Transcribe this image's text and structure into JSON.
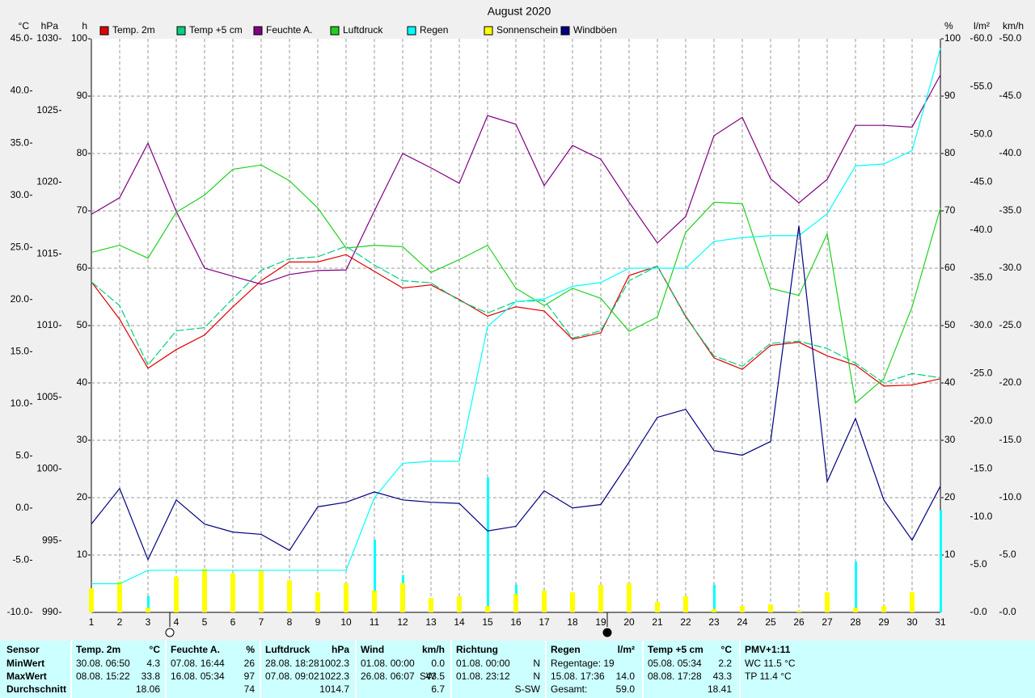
{
  "chart_data": {
    "type": "line",
    "title": "August 2020",
    "x": [
      1,
      2,
      3,
      4,
      5,
      6,
      7,
      8,
      9,
      10,
      11,
      12,
      13,
      14,
      15,
      16,
      17,
      18,
      19,
      20,
      21,
      22,
      23,
      24,
      25,
      26,
      27,
      28,
      29,
      30,
      31
    ],
    "xlim": [
      1,
      31
    ],
    "grid": "sun",
    "axes": {
      "temp": {
        "label": "°C",
        "side": "left",
        "color": "#ff0000",
        "lim": [
          -10,
          45
        ],
        "ticks": [
          {
            "value": -10,
            "label": "-10.0"
          },
          {
            "value": -5,
            "label": "-5.0"
          },
          {
            "value": 0,
            "label": "0.0"
          },
          {
            "value": 5,
            "label": "5.0"
          },
          {
            "value": 10,
            "label": "10.0"
          },
          {
            "value": 15,
            "label": "15.0"
          },
          {
            "value": 20,
            "label": "20.0"
          },
          {
            "value": 25,
            "label": "25.0"
          },
          {
            "value": 30,
            "label": "30.0"
          },
          {
            "value": 35,
            "label": "35.0"
          },
          {
            "value": 40,
            "label": "40.0"
          },
          {
            "value": 45,
            "label": "45.0"
          }
        ]
      },
      "pressure": {
        "label": "hPa",
        "side": "left",
        "color": "#00b000",
        "lim": [
          990,
          1030
        ],
        "ticks": [
          990,
          995,
          1000,
          1005,
          1010,
          1015,
          1020,
          1025,
          1030
        ]
      },
      "sun": {
        "label": "h",
        "side": "left",
        "color": "#e0e000",
        "lim": [
          0,
          100
        ],
        "ticks": [
          10,
          20,
          30,
          40,
          50,
          60,
          70,
          80,
          90,
          100
        ]
      },
      "humidity": {
        "label": "%",
        "side": "right",
        "color": "#800080",
        "lim": [
          0,
          100
        ],
        "ticks": [
          10,
          20,
          30,
          40,
          50,
          60,
          70,
          80,
          90,
          100
        ]
      },
      "rain": {
        "label": "l/m²",
        "side": "right",
        "color": "#00c0c0",
        "lim": [
          0,
          60
        ],
        "ticks": [
          {
            "value": 0,
            "label": "0.0"
          },
          {
            "value": 5,
            "label": "5.0"
          },
          {
            "value": 10,
            "label": "10.0"
          },
          {
            "value": 15,
            "label": "15.0"
          },
          {
            "value": 20,
            "label": "20.0"
          },
          {
            "value": 25,
            "label": "25.0"
          },
          {
            "value": 30,
            "label": "30.0"
          },
          {
            "value": 35,
            "label": "35.0"
          },
          {
            "value": 40,
            "label": "40.0"
          },
          {
            "value": 45,
            "label": "45.0"
          },
          {
            "value": 50,
            "label": "50.0"
          },
          {
            "value": 55,
            "label": "55.0"
          },
          {
            "value": 60,
            "label": "60.0"
          }
        ]
      },
      "wind": {
        "label": "km/h",
        "side": "right",
        "color": "#000080",
        "lim": [
          0,
          50
        ],
        "ticks": [
          {
            "value": 0,
            "label": "0.0"
          },
          {
            "value": 5,
            "label": "5.0"
          },
          {
            "value": 10,
            "label": "10.0"
          },
          {
            "value": 15,
            "label": "15.0"
          },
          {
            "value": 20,
            "label": "20.0"
          },
          {
            "value": 25,
            "label": "25.0"
          },
          {
            "value": 30,
            "label": "30.0"
          },
          {
            "value": 35,
            "label": "35.0"
          },
          {
            "value": 40,
            "label": "40.0"
          },
          {
            "value": 45,
            "label": "45.0"
          },
          {
            "value": 50,
            "label": "50.0"
          }
        ]
      }
    },
    "series": [
      {
        "name": "Temp. 2m",
        "color": "#e00000",
        "axis": "temp",
        "kind": "line",
        "values": [
          21.7,
          18.1,
          13.4,
          15.2,
          16.6,
          19.3,
          21.8,
          23.6,
          23.6,
          24.3,
          22.7,
          21.1,
          21.4,
          20.0,
          18.4,
          19.3,
          18.9,
          16.2,
          16.8,
          22.3,
          23.2,
          18.4,
          14.4,
          13.3,
          15.6,
          15.9,
          14.6,
          13.7,
          11.7,
          11.8,
          12.4
        ]
      },
      {
        "name": "Temp +5 cm",
        "color": "#00d080",
        "axis": "temp",
        "kind": "line",
        "dashed": true,
        "values": [
          21.7,
          19.4,
          13.7,
          17.0,
          17.3,
          20.1,
          22.8,
          23.9,
          24.1,
          25.1,
          23.3,
          21.8,
          21.6,
          19.9,
          18.7,
          19.8,
          19.9,
          16.3,
          17.0,
          21.8,
          23.2,
          18.3,
          14.6,
          13.6,
          15.8,
          16.0,
          15.3,
          13.9,
          12.0,
          12.9,
          12.5
        ]
      },
      {
        "name": "Feuchte A.",
        "color": "#800080",
        "axis": "humidity",
        "kind": "line",
        "values": [
          69.4,
          72.3,
          81.8,
          69.9,
          60.0,
          58.6,
          57.2,
          58.9,
          59.6,
          59.7,
          70.0,
          80.0,
          77.5,
          74.8,
          86.6,
          85.1,
          74.4,
          81.4,
          79.0,
          71.5,
          64.4,
          69.0,
          83.1,
          86.3,
          75.6,
          71.4,
          75.5,
          84.9,
          84.9,
          84.6,
          93.7
        ]
      },
      {
        "name": "Luftdruck",
        "color": "#20d020",
        "axis": "pressure",
        "kind": "line",
        "values": [
          1015.1,
          1015.6,
          1014.7,
          1017.9,
          1019.1,
          1020.9,
          1021.2,
          1020.1,
          1018.2,
          1015.4,
          1015.6,
          1015.5,
          1013.7,
          1014.6,
          1015.6,
          1012.6,
          1011.4,
          1012.6,
          1011.9,
          1009.6,
          1010.6,
          1016.5,
          1018.6,
          1018.5,
          1012.6,
          1012.1,
          1016.4,
          1004.6,
          1006.3,
          1011.3,
          1018.2
        ]
      },
      {
        "name": "Regen",
        "color": "#00ffff",
        "axis": "rain",
        "kind": "line",
        "values": [
          3.0,
          3.0,
          4.4,
          4.4,
          4.4,
          4.4,
          4.4,
          4.4,
          4.4,
          4.4,
          12.0,
          15.6,
          15.8,
          15.8,
          29.9,
          32.5,
          32.8,
          34.1,
          34.5,
          36.0,
          36.0,
          36.0,
          38.8,
          39.2,
          39.4,
          39.4,
          41.7,
          46.7,
          46.9,
          48.3,
          59.0
        ],
        "daily": [
          0,
          0,
          1.7,
          0,
          0,
          0,
          0,
          0,
          0,
          0,
          7.6,
          3.9,
          0,
          0,
          14.1,
          2.9,
          0,
          1.3,
          0.5,
          1.7,
          0,
          0,
          2.9,
          0.5,
          0,
          0,
          1.9,
          5.3,
          0,
          1.3,
          10.7
        ]
      },
      {
        "name": "Sonnenschein",
        "color": "#ffff00",
        "axis": "sun",
        "kind": "bar",
        "values": [
          4.2,
          5.4,
          0.8,
          6.2,
          7.6,
          6.8,
          7.3,
          5.6,
          3.5,
          5.1,
          3.8,
          5.1,
          2.5,
          2.8,
          1.1,
          3.2,
          3.8,
          3.5,
          4.8,
          5.1,
          1.8,
          2.8,
          0.6,
          1.1,
          1.4,
          0.3,
          3.5,
          0.8,
          1.1,
          3.5,
          0
        ]
      },
      {
        "name": "Windböen",
        "color": "#000080",
        "axis": "wind",
        "kind": "line",
        "values": [
          7.7,
          10.8,
          4.6,
          9.8,
          7.7,
          7.0,
          6.8,
          5.4,
          9.2,
          9.6,
          10.5,
          9.8,
          9.6,
          9.5,
          7.1,
          7.5,
          10.6,
          9.1,
          9.4,
          13.1,
          17.0,
          17.7,
          14.1,
          13.7,
          14.9,
          33.7,
          11.4,
          16.9,
          9.8,
          6.3,
          11.0
        ]
      }
    ]
  },
  "table": {
    "row_labels": [
      "Sensor",
      "MinWert",
      "MaxWert",
      "Durchschnitt"
    ],
    "columns": [
      {
        "header": "Temp. 2m",
        "unit": "°C",
        "rows": [
          {
            "left": "30.08. 06:50",
            "right": "4.3"
          },
          {
            "left": "08.08. 15:22",
            "right": "33.8"
          },
          {
            "right": "18.06"
          }
        ]
      },
      {
        "header": "Feuchte A.",
        "unit": "%",
        "rows": [
          {
            "left": "07.08. 16:44",
            "right": "26"
          },
          {
            "left": "16.08. 05:34",
            "right": "97"
          },
          {
            "right": "74"
          }
        ]
      },
      {
        "header": "Luftdruck",
        "unit": "hPa",
        "rows": [
          {
            "left": "28.08. 18:28",
            "right": "1002.3"
          },
          {
            "left": "07.08. 09:02",
            "right": "1022.3"
          },
          {
            "right": "1014.7"
          }
        ]
      },
      {
        "header": "Wind",
        "unit": "km/h",
        "rows": [
          {
            "left": "01.08. 00:00",
            "right": "0.0"
          },
          {
            "left": "26.08. 06:07",
            "mid": "SW",
            "right": "43.5"
          },
          {
            "right": "6.7"
          }
        ]
      },
      {
        "header": "Richtung",
        "rows": [
          {
            "left": "01.08. 00:00",
            "right": "N"
          },
          {
            "left": "01.08. 23:12",
            "right": "N"
          },
          {
            "right": "S-SW"
          }
        ]
      },
      {
        "header": "Regen",
        "unit": "l/m²",
        "rows": [
          {
            "left": "Regentage: 19"
          },
          {
            "left": "15.08. 17:36",
            "right": "14.0"
          },
          {
            "left": "Gesamt:",
            "right": "59.0"
          }
        ]
      },
      {
        "header": "Temp +5 cm",
        "unit": "°C",
        "rows": [
          {
            "left": "05.08. 05:34",
            "right": "2.2"
          },
          {
            "left": "08.08. 17:28",
            "right": "43.3"
          },
          {
            "right": "18.41"
          }
        ]
      },
      {
        "header": "PMV+1:11",
        "rows": [
          {
            "left": "WC 11.5 °C"
          },
          {
            "left": "TP 11.4 °C"
          }
        ]
      }
    ]
  }
}
